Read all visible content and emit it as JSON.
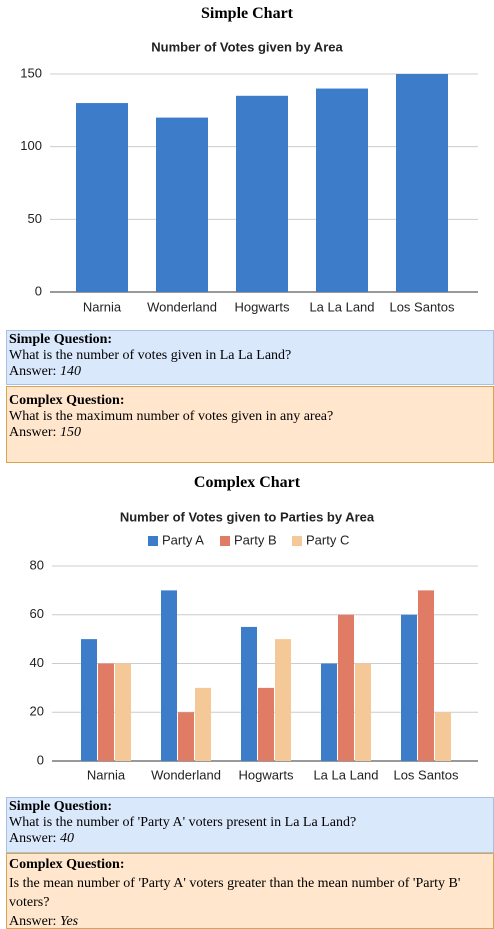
{
  "chart_data": [
    {
      "type": "bar",
      "title": "Number of Votes given by Area",
      "categories": [
        "Narnia",
        "Wonderland",
        "Hogwarts",
        "La La Land",
        "Los Santos"
      ],
      "values": [
        130,
        120,
        135,
        140,
        150
      ],
      "color": "#3d7cc9",
      "ylim": [
        0,
        150
      ],
      "yticks": [
        0,
        50,
        100,
        150
      ],
      "grid": true
    },
    {
      "type": "bar",
      "title": "Number of Votes given to Parties by Area",
      "categories": [
        "Narnia",
        "Wonderland",
        "Hogwarts",
        "La La Land",
        "Los Santos"
      ],
      "series": [
        {
          "name": "Party A",
          "color": "#3d7cc9",
          "values": [
            50,
            70,
            55,
            40,
            60
          ]
        },
        {
          "name": "Party B",
          "color": "#e07b65",
          "values": [
            40,
            20,
            30,
            60,
            70
          ]
        },
        {
          "name": "Party C",
          "color": "#f5c897",
          "values": [
            40,
            30,
            50,
            40,
            20
          ]
        }
      ],
      "ylim": [
        0,
        80
      ],
      "yticks": [
        0,
        20,
        40,
        60,
        80
      ],
      "grid": true,
      "legend": "top"
    }
  ],
  "sections": [
    {
      "heading": "Simple Chart",
      "qa": [
        {
          "label": "Simple Question:",
          "question": "What is the number of votes given in La La Land?",
          "answer_label": "Answer:",
          "answer": "140"
        },
        {
          "label": "Complex Question:",
          "question": "What is the maximum number of votes given in any area?",
          "answer_label": "Answer:",
          "answer": "150"
        }
      ]
    },
    {
      "heading": "Complex Chart",
      "qa": [
        {
          "label": "Simple Question:",
          "question": "What is the number of 'Party A' voters present in La La Land?",
          "answer_label": "Answer:",
          "answer": "40"
        },
        {
          "label": "Complex Question:",
          "question": "Is the mean number of 'Party A' voters greater than the mean number of 'Party B' voters?",
          "answer_label": "Answer:",
          "answer": "Yes"
        }
      ]
    }
  ]
}
